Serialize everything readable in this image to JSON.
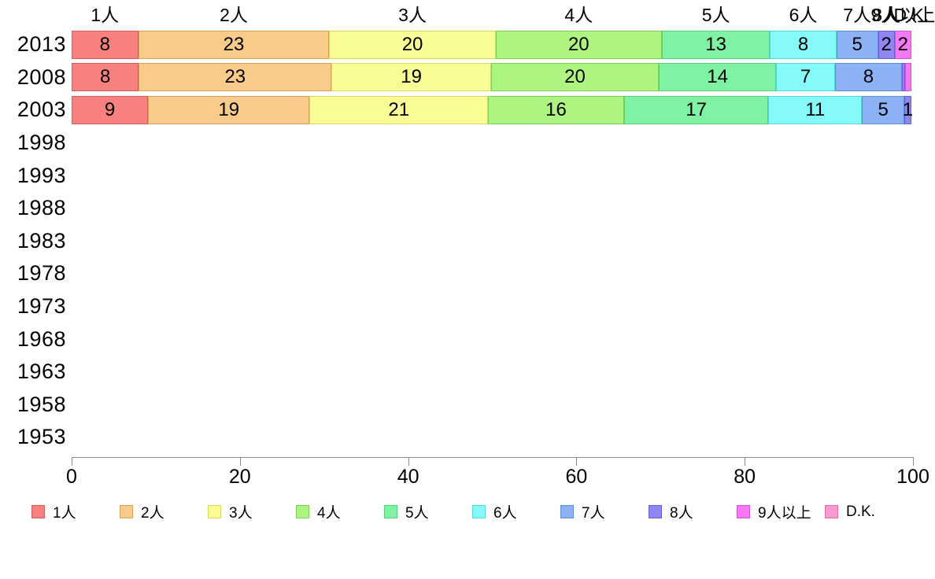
{
  "page": {
    "background": "#ffffff"
  },
  "chart_data": {
    "type": "bar",
    "stacked": true,
    "orientation": "horizontal",
    "title": "",
    "xlabel": "",
    "ylabel": "",
    "grid": false,
    "x_axis": {
      "min": 0,
      "max": 100,
      "ticks": [
        "0",
        "20",
        "40",
        "60",
        "80",
        "100"
      ]
    },
    "categories": [
      "2013",
      "2008",
      "2003",
      "1998",
      "1993",
      "1988",
      "1983",
      "1978",
      "1973",
      "1968",
      "1963",
      "1958",
      "1953"
    ],
    "series": [
      {
        "name": "1人",
        "color": "#f8807f",
        "border": "#d45c5c",
        "values": {
          "2013": 8,
          "2008": 8,
          "2003": 9
        }
      },
      {
        "name": "2人",
        "color": "#f8cb8b",
        "border": "#d8a258",
        "values": {
          "2013": 23,
          "2008": 23,
          "2003": 19
        }
      },
      {
        "name": "3人",
        "color": "#fafc95",
        "border": "#d6da60",
        "values": {
          "2013": 20,
          "2008": 19,
          "2003": 21
        }
      },
      {
        "name": "4人",
        "color": "#adf480",
        "border": "#7cd152",
        "values": {
          "2013": 20,
          "2008": 20,
          "2003": 16
        }
      },
      {
        "name": "5人",
        "color": "#80f2a4",
        "border": "#54d17c",
        "values": {
          "2013": 13,
          "2008": 14,
          "2003": 17
        }
      },
      {
        "name": "6人",
        "color": "#85faf8",
        "border": "#57d7d5",
        "values": {
          "2013": 8,
          "2008": 7,
          "2003": 11
        }
      },
      {
        "name": "7人",
        "color": "#8cb1f4",
        "border": "#5f8dd8",
        "values": {
          "2013": 5,
          "2008": 8,
          "2003": 5
        }
      },
      {
        "name": "8人",
        "color": "#9086f2",
        "border": "#685fd4",
        "values": {
          "2013": 2,
          "2008": 0.4,
          "2003": 0.8
        }
      },
      {
        "name": "9人以上",
        "color": "#f678f4",
        "border": "#d453d2",
        "values": {
          "2013": 2,
          "2008": 0.7,
          "2003": 0
        }
      },
      {
        "name": "D.K.",
        "color": "#f89ad2",
        "border": "#d56fa8",
        "values": {
          "2013": 0,
          "2008": 0,
          "2003": 0
        }
      }
    ],
    "segment_labels": {
      "2013": [
        "8",
        "23",
        "20",
        "20",
        "13",
        "8",
        "5",
        "2",
        "2",
        ""
      ],
      "2008": [
        "8",
        "23",
        "19",
        "20",
        "14",
        "7",
        "8",
        "",
        "",
        ""
      ],
      "2003": [
        "9",
        "19",
        "21",
        "16",
        "17",
        "11",
        "5",
        "1",
        "",
        ""
      ]
    },
    "legend": {
      "position": "bottom"
    }
  }
}
